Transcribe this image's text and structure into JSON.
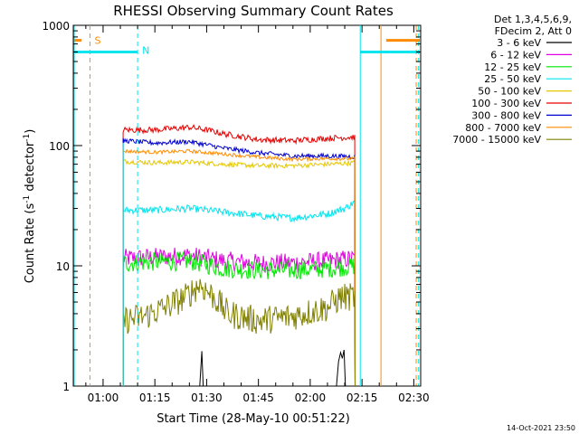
{
  "chart_data": {
    "type": "line",
    "title": "RHESSI Observing Summary Count Rates",
    "xlabel": "Start Time (28-May-10 00:51:22)",
    "ylabel_main": "Count Rate (s",
    "ylabel_sup1": "-1",
    "ylabel_mid": " detector",
    "ylabel_sup2": "-1",
    "ylabel_end": ")",
    "footer_date": "14-Oct-2021 23:50",
    "y_scale": "log",
    "ylim": [
      1,
      1000
    ],
    "xlim_minutes": [
      51.367,
      152.0
    ],
    "x_ticks": [
      {
        "t": 60,
        "label": "01:00"
      },
      {
        "t": 75,
        "label": "01:15"
      },
      {
        "t": 90,
        "label": "01:30"
      },
      {
        "t": 105,
        "label": "01:45"
      },
      {
        "t": 120,
        "label": "02:00"
      },
      {
        "t": 135,
        "label": "02:15"
      },
      {
        "t": 150,
        "label": "02:30"
      }
    ],
    "y_ticks": [
      {
        "v": 1,
        "label": "1"
      },
      {
        "v": 10,
        "label": "10"
      },
      {
        "v": 100,
        "label": "100"
      },
      {
        "v": 1000,
        "label": "1000"
      }
    ],
    "legend": {
      "header_line1": "Det 1,3,4,5,6,9,",
      "header_line2": "FDecim 2, Att 0",
      "position": "right"
    },
    "attenuator_markers": [
      {
        "label": "S",
        "start": 56.2,
        "end": 56.2,
        "color": "#ff8c00"
      },
      {
        "label": "N",
        "start": 70.0,
        "end": 70.0,
        "color": "#00e5ee"
      }
    ],
    "data_window": [
      65.8,
      133.0
    ],
    "series": [
      {
        "name": "3 - 6 keV",
        "color": "#000000",
        "points": [
          [
            65.8,
            1.0
          ],
          [
            88.0,
            1.0
          ],
          [
            88.6,
            1.95
          ],
          [
            89.0,
            1.0
          ],
          [
            127.6,
            1.0
          ],
          [
            128.2,
            1.6
          ],
          [
            128.8,
            1.9
          ],
          [
            129.3,
            1.7
          ],
          [
            129.8,
            2.0
          ],
          [
            130.2,
            1.0
          ],
          [
            133.0,
            1.0
          ]
        ]
      },
      {
        "name": "6 - 12 keV",
        "color": "#e100e1",
        "points": [
          [
            65.8,
            11.5
          ],
          [
            75,
            11.8
          ],
          [
            85,
            12.2
          ],
          [
            95,
            11.0
          ],
          [
            105,
            10.5
          ],
          [
            115,
            10.6
          ],
          [
            125,
            11.0
          ],
          [
            133,
            11.5
          ]
        ]
      },
      {
        "name": "12 - 25 keV",
        "color": "#00e600",
        "points": [
          [
            65.8,
            10.5
          ],
          [
            75,
            10.8
          ],
          [
            85,
            11.0
          ],
          [
            95,
            9.5
          ],
          [
            105,
            9.2
          ],
          [
            115,
            9.2
          ],
          [
            125,
            9.5
          ],
          [
            133,
            10.0
          ]
        ]
      },
      {
        "name": "25 - 50 keV",
        "color": "#00e5ee",
        "points": [
          [
            65.8,
            29
          ],
          [
            75,
            29
          ],
          [
            85,
            30
          ],
          [
            95,
            28
          ],
          [
            105,
            26
          ],
          [
            115,
            25
          ],
          [
            125,
            27
          ],
          [
            130,
            30
          ],
          [
            133,
            34
          ]
        ]
      },
      {
        "name": "50 - 100 keV",
        "color": "#e6c800",
        "points": [
          [
            65.8,
            74
          ],
          [
            75,
            72
          ],
          [
            85,
            73
          ],
          [
            95,
            70
          ],
          [
            105,
            68
          ],
          [
            115,
            68
          ],
          [
            125,
            70
          ],
          [
            133,
            72
          ]
        ]
      },
      {
        "name": "100 - 300 keV",
        "color": "#e60000",
        "points": [
          [
            65.8,
            135
          ],
          [
            75,
            135
          ],
          [
            80,
            138
          ],
          [
            85,
            142
          ],
          [
            90,
            135
          ],
          [
            95,
            125
          ],
          [
            105,
            112
          ],
          [
            115,
            110
          ],
          [
            125,
            115
          ],
          [
            133,
            118
          ]
        ]
      },
      {
        "name": "300 - 800 keV",
        "color": "#0000d0",
        "points": [
          [
            65.8,
            110
          ],
          [
            75,
            105
          ],
          [
            85,
            108
          ],
          [
            95,
            95
          ],
          [
            105,
            87
          ],
          [
            115,
            82
          ],
          [
            125,
            82
          ],
          [
            133,
            81
          ]
        ]
      },
      {
        "name": "800 - 7000 keV",
        "color": "#ff8c00",
        "points": [
          [
            65.8,
            90
          ],
          [
            75,
            88
          ],
          [
            85,
            90
          ],
          [
            95,
            85
          ],
          [
            105,
            80
          ],
          [
            115,
            77
          ],
          [
            125,
            78
          ],
          [
            133,
            78
          ]
        ]
      },
      {
        "name": "7000 - 15000 keV",
        "color": "#808000",
        "points": [
          [
            65.8,
            3.5
          ],
          [
            72,
            3.8
          ],
          [
            78,
            4.5
          ],
          [
            84,
            5.5
          ],
          [
            88,
            7.0
          ],
          [
            92,
            5.5
          ],
          [
            96,
            4.0
          ],
          [
            105,
            3.5
          ],
          [
            115,
            3.8
          ],
          [
            125,
            4.5
          ],
          [
            129,
            5.5
          ],
          [
            133,
            5.5
          ]
        ]
      }
    ]
  }
}
